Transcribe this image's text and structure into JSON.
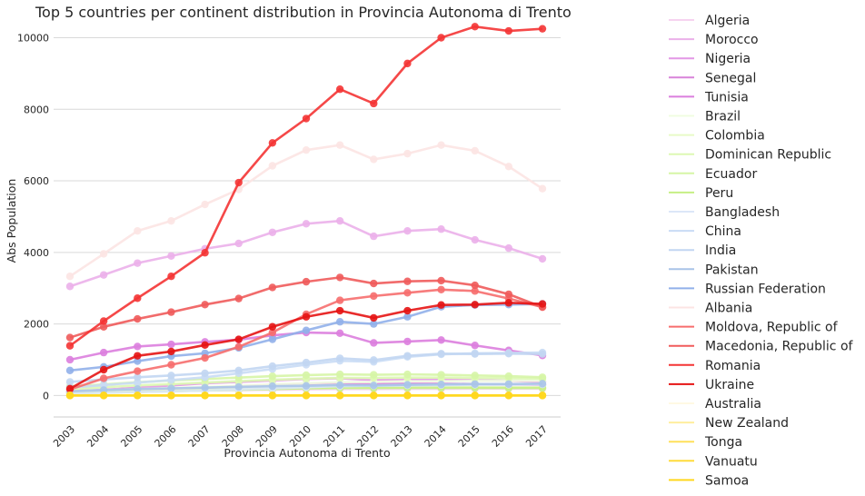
{
  "chart_data": {
    "type": "line",
    "title": "Top 5 countries per continent distribution in Provincia Autonoma di Trento",
    "xlabel": "Provincia Autonoma di Trento",
    "ylabel": "Abs Population",
    "x": [
      "2003",
      "2004",
      "2005",
      "2006",
      "2007",
      "2008",
      "2009",
      "2010",
      "2011",
      "2012",
      "2013",
      "2014",
      "2015",
      "2016",
      "2017"
    ],
    "ylim": [
      -600,
      10800
    ],
    "yticks": [
      0,
      2000,
      4000,
      6000,
      8000,
      10000
    ],
    "ytick_labels": [
      "0",
      "2000",
      "4000",
      "6000",
      "8000",
      "10000"
    ],
    "grid": "horizontal",
    "legend_position": "right",
    "series": [
      {
        "name": "Algeria",
        "color": "#f6d3f0",
        "values": [
          70,
          90,
          110,
          130,
          140,
          150,
          160,
          170,
          180,
          180,
          185,
          185,
          190,
          190,
          190
        ]
      },
      {
        "name": "Morocco",
        "color": "#ebb0ea",
        "values": [
          3050,
          3370,
          3700,
          3900,
          4100,
          4250,
          4560,
          4800,
          4880,
          4450,
          4600,
          4650,
          4350,
          4120,
          3820
        ]
      },
      {
        "name": "Nigeria",
        "color": "#e397e6",
        "values": [
          120,
          160,
          220,
          280,
          340,
          380,
          420,
          460,
          480,
          430,
          450,
          450,
          430,
          410,
          380
        ]
      },
      {
        "name": "Senegal",
        "color": "#d884d9",
        "values": [
          100,
          130,
          160,
          190,
          220,
          260,
          300,
          330,
          350,
          320,
          330,
          330,
          320,
          310,
          300
        ]
      },
      {
        "name": "Tunisia",
        "color": "#db7ede",
        "values": [
          1000,
          1200,
          1370,
          1430,
          1500,
          1560,
          1680,
          1760,
          1740,
          1470,
          1510,
          1550,
          1400,
          1260,
          1120
        ]
      },
      {
        "name": "Brazil",
        "color": "#f0fde0",
        "values": [
          120,
          150,
          180,
          210,
          240,
          270,
          310,
          340,
          370,
          380,
          400,
          400,
          410,
          410,
          410
        ]
      },
      {
        "name": "Colombia",
        "color": "#e8fbc8",
        "values": [
          80,
          100,
          120,
          140,
          160,
          180,
          200,
          220,
          230,
          230,
          240,
          240,
          240,
          230,
          230
        ]
      },
      {
        "name": "Dominican Republic",
        "color": "#ddf8b3",
        "values": [
          180,
          230,
          280,
          320,
          360,
          400,
          440,
          470,
          490,
          490,
          500,
          500,
          490,
          480,
          470
        ]
      },
      {
        "name": "Ecuador",
        "color": "#d6f5a6",
        "values": [
          250,
          310,
          370,
          420,
          460,
          500,
          540,
          570,
          590,
          580,
          590,
          580,
          560,
          540,
          510
        ]
      },
      {
        "name": "Peru",
        "color": "#c6ef85",
        "values": [
          60,
          80,
          100,
          120,
          140,
          160,
          180,
          200,
          210,
          210,
          215,
          215,
          215,
          210,
          210
        ]
      },
      {
        "name": "Bangladesh",
        "color": "#dce7f8",
        "values": [
          60,
          80,
          100,
          120,
          140,
          170,
          200,
          230,
          260,
          270,
          280,
          290,
          300,
          300,
          310
        ]
      },
      {
        "name": "China",
        "color": "#c9dcf5",
        "values": [
          220,
          290,
          360,
          430,
          510,
          620,
          740,
          860,
          970,
          940,
          1080,
          1150,
          1180,
          1190,
          1200
        ]
      },
      {
        "name": "India",
        "color": "#c2d6f2",
        "values": [
          380,
          450,
          510,
          560,
          620,
          700,
          820,
          920,
          1040,
          990,
          1110,
          1170,
          1160,
          1170,
          1160
        ]
      },
      {
        "name": "Pakistan",
        "color": "#a9c4e8",
        "values": [
          120,
          150,
          180,
          200,
          220,
          240,
          260,
          270,
          290,
          280,
          300,
          310,
          320,
          320,
          330
        ]
      },
      {
        "name": "Russian Federation",
        "color": "#91b0ea",
        "values": [
          700,
          800,
          960,
          1100,
          1180,
          1330,
          1570,
          1820,
          2060,
          2000,
          2200,
          2480,
          2530,
          2540,
          2560
        ]
      },
      {
        "name": "Albania",
        "color": "#fce4e3",
        "values": [
          3330,
          3960,
          4600,
          4880,
          5340,
          5760,
          6420,
          6860,
          7000,
          6600,
          6760,
          7000,
          6840,
          6400,
          5780
        ]
      },
      {
        "name": "Moldova, Republic of",
        "color": "#f66e6e",
        "values": [
          170,
          480,
          680,
          860,
          1050,
          1360,
          1760,
          2270,
          2660,
          2780,
          2870,
          2960,
          2920,
          2710,
          2470
        ]
      },
      {
        "name": "Macedonia, Republic of",
        "color": "#f05b5b",
        "values": [
          1620,
          1920,
          2140,
          2330,
          2540,
          2710,
          3020,
          3180,
          3300,
          3130,
          3190,
          3210,
          3080,
          2830,
          2470
        ]
      },
      {
        "name": "Romania",
        "color": "#f43434",
        "values": [
          1390,
          2080,
          2720,
          3330,
          3990,
          5950,
          7060,
          7740,
          8560,
          8160,
          9280,
          10000,
          10310,
          10190,
          10250
        ]
      },
      {
        "name": "Ukraine",
        "color": "#e61414",
        "values": [
          190,
          720,
          1110,
          1230,
          1410,
          1570,
          1920,
          2200,
          2370,
          2170,
          2370,
          2530,
          2540,
          2590,
          2560
        ]
      },
      {
        "name": "Australia",
        "color": "#fff9e3",
        "values": [
          5,
          5,
          6,
          6,
          7,
          7,
          7,
          8,
          8,
          8,
          8,
          8,
          8,
          8,
          8
        ]
      },
      {
        "name": "New Zealand",
        "color": "#ffee9e",
        "values": [
          3,
          3,
          3,
          4,
          4,
          4,
          4,
          4,
          4,
          4,
          4,
          4,
          4,
          4,
          4
        ]
      },
      {
        "name": "Tonga",
        "color": "#ffe05a",
        "values": [
          1,
          1,
          1,
          1,
          1,
          1,
          1,
          1,
          1,
          1,
          1,
          1,
          1,
          1,
          1
        ]
      },
      {
        "name": "Vanuatu",
        "color": "#ffdb3b",
        "values": [
          0,
          0,
          0,
          0,
          0,
          0,
          0,
          0,
          0,
          0,
          0,
          0,
          0,
          0,
          0
        ]
      },
      {
        "name": "Samoa",
        "color": "#ffd71e",
        "values": [
          2,
          2,
          2,
          2,
          2,
          2,
          2,
          2,
          2,
          2,
          2,
          2,
          2,
          2,
          2
        ]
      }
    ]
  }
}
